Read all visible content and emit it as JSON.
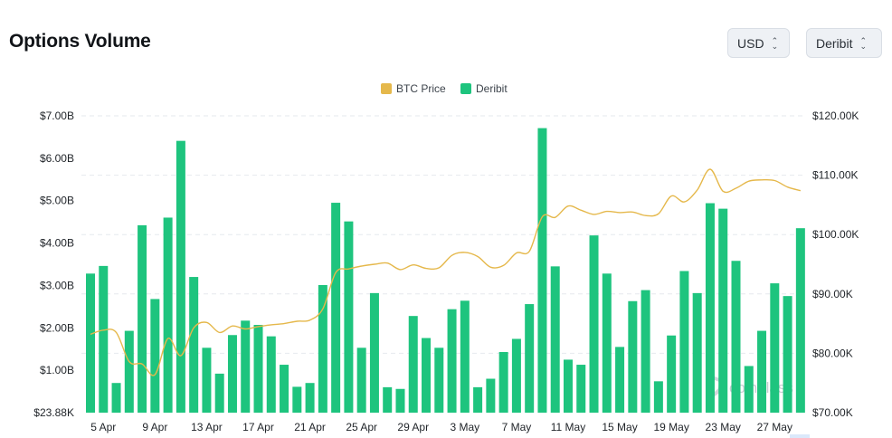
{
  "header": {
    "title": "Options Volume",
    "currency_select": {
      "value": "USD"
    },
    "exchange_select": {
      "value": "Deribit"
    }
  },
  "watermark": "coinglass",
  "colors": {
    "bar": "#1ec47e",
    "price": "#e5b84b",
    "grid": "#e6e9ee"
  },
  "chart_data": {
    "type": "bar",
    "legend": [
      "BTC Price",
      "Deribit"
    ],
    "legend_position": "top-center",
    "x_tick_labels": [
      "5 Apr",
      "9 Apr",
      "13 Apr",
      "17 Apr",
      "21 Apr",
      "25 Apr",
      "29 Apr",
      "3 May",
      "7 May",
      "11 May",
      "15 May",
      "19 May",
      "23 May",
      "27 May"
    ],
    "x_tick_index": [
      1,
      5,
      9,
      13,
      17,
      21,
      25,
      29,
      33,
      37,
      41,
      45,
      49,
      53
    ],
    "categories": [
      "4 Apr",
      "5 Apr",
      "6 Apr",
      "7 Apr",
      "8 Apr",
      "9 Apr",
      "10 Apr",
      "11 Apr",
      "12 Apr",
      "13 Apr",
      "14 Apr",
      "15 Apr",
      "16 Apr",
      "17 Apr",
      "18 Apr",
      "19 Apr",
      "20 Apr",
      "21 Apr",
      "22 Apr",
      "23 Apr",
      "24 Apr",
      "25 Apr",
      "26 Apr",
      "27 Apr",
      "28 Apr",
      "29 Apr",
      "30 Apr",
      "1 May",
      "2 May",
      "3 May",
      "4 May",
      "5 May",
      "6 May",
      "7 May",
      "8 May",
      "9 May",
      "10 May",
      "11 May",
      "12 May",
      "13 May",
      "14 May",
      "15 May",
      "16 May",
      "17 May",
      "18 May",
      "19 May",
      "20 May",
      "21 May",
      "22 May",
      "23 May",
      "24 May",
      "25 May",
      "26 May",
      "27 May",
      "28 May",
      "29 May"
    ],
    "y_left_ticks": [
      "$23.88K",
      "$1.00B",
      "$2.00B",
      "$3.00B",
      "$4.00B",
      "$5.00B",
      "$6.00B",
      "$7.00B"
    ],
    "y_right_ticks": [
      "$70.00K",
      "$80.00K",
      "$90.00K",
      "$100.00K",
      "$110.00K",
      "$120.00K"
    ],
    "y_left_range": [
      0,
      7.0
    ],
    "y_right_range": [
      70000,
      120000
    ],
    "series": [
      {
        "name": "Deribit",
        "axis": "left",
        "unit": "billion USD",
        "values": [
          3.28,
          3.46,
          0.7,
          1.93,
          4.42,
          2.68,
          4.6,
          6.41,
          3.2,
          1.53,
          0.92,
          1.83,
          2.17,
          2.07,
          1.8,
          1.13,
          0.61,
          0.7,
          3.01,
          4.95,
          4.51,
          1.53,
          2.82,
          0.6,
          0.56,
          2.28,
          1.76,
          1.53,
          2.44,
          2.64,
          0.6,
          0.8,
          1.43,
          1.74,
          2.56,
          6.71,
          3.45,
          1.25,
          1.13,
          4.18,
          3.28,
          1.55,
          2.63,
          2.89,
          0.74,
          1.82,
          3.34,
          2.82,
          4.94,
          4.81,
          3.58,
          1.1,
          1.93,
          3.05,
          2.75,
          4.35
        ]
      },
      {
        "name": "BTC Price",
        "axis": "right",
        "unit": "USD",
        "values": [
          83200,
          83900,
          83500,
          78600,
          78200,
          76400,
          82500,
          79600,
          84300,
          85200,
          83500,
          84600,
          84100,
          84500,
          84800,
          85000,
          85400,
          85600,
          87500,
          93600,
          94200,
          94700,
          95000,
          95200,
          94100,
          94900,
          94300,
          94400,
          96500,
          97000,
          96300,
          94500,
          94800,
          96900,
          97200,
          103000,
          102900,
          104800,
          104100,
          103400,
          103900,
          103700,
          103800,
          103200,
          103500,
          106500,
          105500,
          107500,
          111000,
          107300,
          107800,
          109000,
          109200,
          109100,
          108000,
          107400
        ]
      }
    ]
  }
}
